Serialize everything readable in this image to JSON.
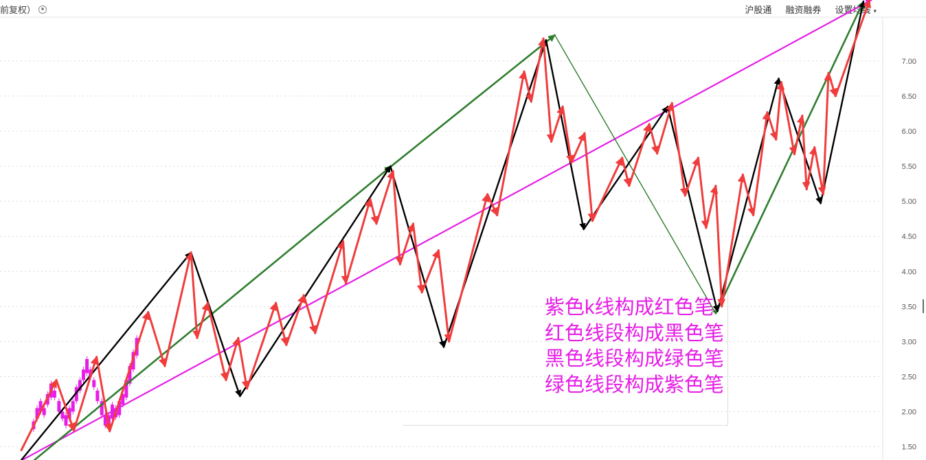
{
  "header": {
    "left_label": "前复权）",
    "settings_icon": "gear-icon",
    "menu": [
      "沪股通",
      "融资融券",
      "设置均线"
    ],
    "menu_caret": "▾"
  },
  "notes": [
    "紫色k线构成红色笔",
    "红色线段构成黑色笔",
    "黑色线段构成绿色笔",
    "绿色线段构成紫色笔"
  ],
  "colors": {
    "red": "#f03c3c",
    "black": "#000000",
    "green": "#2e7d2e",
    "magenta": "#e61ee6",
    "candle": "#e61ee6",
    "grid": "#d9d9d9",
    "tick_text": "#555555"
  },
  "chart_data": {
    "type": "line",
    "yticks": [
      1.5,
      2.0,
      2.5,
      3.0,
      3.5,
      4.0,
      4.5,
      5.0,
      5.5,
      6.0,
      6.5,
      7.0
    ],
    "ytick_labels": [
      "1.50",
      "2.00",
      "2.50",
      "3.00",
      "3.50",
      "4.00",
      "4.50",
      "5.00",
      "5.50",
      "6.00",
      "6.50",
      "7.00"
    ],
    "ylim": [
      1.31,
      7.87
    ],
    "xlim": [
      0,
      100
    ],
    "grid": "horizontal-dotted",
    "candles": [
      {
        "x": 2.9,
        "o": 1.75,
        "c": 1.86
      },
      {
        "x": 3.3,
        "o": 1.9,
        "c": 2.05
      },
      {
        "x": 3.7,
        "o": 2.0,
        "c": 2.15
      },
      {
        "x": 4.1,
        "o": 2.05,
        "c": 1.95
      },
      {
        "x": 4.5,
        "o": 2.1,
        "c": 2.25
      },
      {
        "x": 4.9,
        "o": 2.2,
        "c": 2.4
      },
      {
        "x": 5.3,
        "o": 2.3,
        "c": 2.2
      },
      {
        "x": 5.8,
        "o": 2.15,
        "c": 2.0
      },
      {
        "x": 6.2,
        "o": 2.0,
        "c": 1.9
      },
      {
        "x": 6.6,
        "o": 1.95,
        "c": 1.8
      },
      {
        "x": 7.0,
        "o": 1.9,
        "c": 2.05
      },
      {
        "x": 7.4,
        "o": 2.0,
        "c": 2.15
      },
      {
        "x": 7.8,
        "o": 2.15,
        "c": 2.35
      },
      {
        "x": 8.2,
        "o": 2.3,
        "c": 2.45
      },
      {
        "x": 8.6,
        "o": 2.45,
        "c": 2.6
      },
      {
        "x": 9.0,
        "o": 2.55,
        "c": 2.75
      },
      {
        "x": 9.4,
        "o": 2.6,
        "c": 2.5
      },
      {
        "x": 9.8,
        "o": 2.45,
        "c": 2.35
      },
      {
        "x": 10.2,
        "o": 2.3,
        "c": 2.15
      },
      {
        "x": 10.7,
        "o": 2.15,
        "c": 1.95
      },
      {
        "x": 11.1,
        "o": 1.95,
        "c": 1.8
      },
      {
        "x": 11.5,
        "o": 1.8,
        "c": 1.95
      },
      {
        "x": 11.9,
        "o": 1.9,
        "c": 2.1
      },
      {
        "x": 12.3,
        "o": 2.05,
        "c": 1.92
      },
      {
        "x": 12.7,
        "o": 1.95,
        "c": 2.15
      },
      {
        "x": 13.1,
        "o": 2.1,
        "c": 2.25
      },
      {
        "x": 13.5,
        "o": 2.2,
        "c": 2.45
      },
      {
        "x": 13.9,
        "o": 2.4,
        "c": 2.65
      },
      {
        "x": 14.3,
        "o": 2.6,
        "c": 2.85
      },
      {
        "x": 14.7,
        "o": 2.8,
        "c": 3.05
      }
    ],
    "series": [
      {
        "color": "red",
        "points": [
          [
            1.5,
            1.45
          ],
          [
            5.5,
            2.45
          ],
          [
            7.5,
            1.73
          ],
          [
            10.1,
            2.78
          ],
          [
            11.6,
            1.72
          ],
          [
            16.0,
            3.42
          ],
          [
            17.9,
            2.65
          ],
          [
            20.9,
            4.27
          ],
          [
            21.6,
            3.05
          ],
          [
            22.8,
            3.55
          ],
          [
            24.9,
            2.45
          ],
          [
            26.3,
            3.05
          ],
          [
            27.3,
            2.33
          ],
          [
            30.6,
            3.55
          ],
          [
            31.8,
            2.95
          ],
          [
            33.8,
            3.66
          ],
          [
            35.1,
            3.12
          ],
          [
            38.3,
            4.43
          ],
          [
            38.6,
            3.83
          ],
          [
            41.4,
            5.03
          ],
          [
            42.1,
            4.68
          ],
          [
            44.0,
            5.43
          ],
          [
            44.8,
            4.1
          ],
          [
            46.3,
            4.68
          ],
          [
            47.3,
            3.7
          ],
          [
            49.2,
            4.3
          ],
          [
            50.4,
            3.0
          ],
          [
            54.8,
            5.1
          ],
          [
            55.9,
            4.8
          ],
          [
            59.0,
            6.85
          ],
          [
            59.8,
            6.42
          ],
          [
            61.2,
            7.32
          ],
          [
            62.1,
            5.85
          ],
          [
            63.4,
            6.35
          ],
          [
            64.4,
            5.55
          ],
          [
            65.9,
            5.97
          ],
          [
            66.8,
            4.72
          ],
          [
            70.2,
            5.62
          ],
          [
            71.0,
            5.22
          ],
          [
            73.3,
            6.1
          ],
          [
            74.2,
            5.68
          ],
          [
            75.9,
            6.4
          ],
          [
            77.4,
            5.08
          ],
          [
            78.9,
            5.62
          ],
          [
            79.8,
            4.62
          ],
          [
            80.9,
            5.22
          ],
          [
            81.6,
            3.5
          ],
          [
            84.0,
            5.38
          ],
          [
            85.2,
            4.8
          ],
          [
            86.8,
            6.27
          ],
          [
            87.8,
            5.88
          ],
          [
            88.4,
            6.7
          ],
          [
            89.9,
            5.67
          ],
          [
            90.8,
            6.22
          ],
          [
            91.3,
            5.17
          ],
          [
            92.2,
            5.77
          ],
          [
            93.2,
            5.1
          ],
          [
            93.8,
            6.83
          ],
          [
            94.6,
            6.5
          ],
          [
            98.5,
            7.87
          ]
        ]
      },
      {
        "color": "black",
        "points": [
          [
            1.5,
            1.31
          ],
          [
            20.9,
            4.27
          ],
          [
            26.5,
            2.22
          ],
          [
            43.7,
            5.5
          ],
          [
            49.8,
            2.92
          ],
          [
            61.5,
            7.3
          ],
          [
            65.8,
            4.6
          ],
          [
            75.4,
            6.35
          ],
          [
            81.1,
            3.43
          ],
          [
            88.1,
            6.75
          ],
          [
            92.9,
            4.97
          ],
          [
            97.8,
            7.85
          ]
        ]
      },
      {
        "color": "green",
        "points": [
          [
            3.0,
            1.31
          ],
          [
            43.8,
            5.5
          ],
          [
            62.5,
            7.37
          ],
          [
            80.9,
            3.4
          ],
          [
            97.8,
            7.85
          ]
        ]
      },
      {
        "color": "magenta",
        "points": [
          [
            1.6,
            1.31
          ],
          [
            98.7,
            7.87
          ]
        ]
      }
    ]
  }
}
